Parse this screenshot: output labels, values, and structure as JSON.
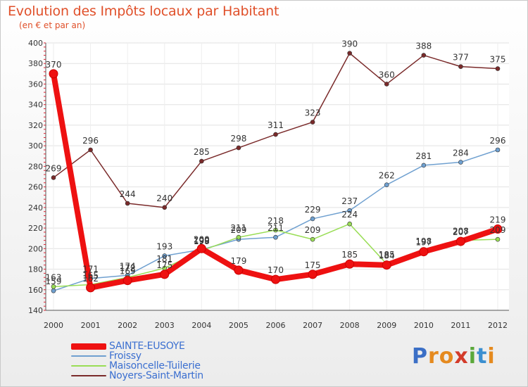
{
  "header": {
    "title": "Evolution des Impôts locaux par Habitant",
    "subtitle": "(en € et par an)"
  },
  "logo": {
    "letters": [
      "P",
      "r",
      "o",
      "x",
      "i",
      "t",
      "i"
    ],
    "icon": "proxiti-logo"
  },
  "chart_data": {
    "type": "line",
    "title": "Evolution des Impôts locaux par Habitant",
    "subtitle": "(en € et par an)",
    "xlabel": "",
    "ylabel": "",
    "x": [
      "2000",
      "2001",
      "2002",
      "2003",
      "2004",
      "2005",
      "2006",
      "2007",
      "2008",
      "2009",
      "2010",
      "2011",
      "2012"
    ],
    "ylim": [
      140,
      400
    ],
    "yticks": [
      "140",
      "160",
      "180",
      "200",
      "220",
      "240",
      "260",
      "280",
      "300",
      "320",
      "340",
      "360",
      "380",
      "400"
    ],
    "grid": true,
    "legend": "bottom-left",
    "series": [
      {
        "name": "SAINTE-EUSOYE",
        "color": "#ee1111",
        "values": [
          370,
          162,
          169,
          175,
          200,
          179,
          170,
          175,
          185,
          184,
          197,
          207,
          219
        ],
        "labels": [
          "370",
          "162",
          "169",
          "175",
          "200",
          "179",
          "170",
          "175",
          "185",
          "184",
          "197",
          "207",
          "219"
        ]
      },
      {
        "name": "Froissy",
        "color": "#6fa0d0",
        "values": [
          159,
          171,
          174,
          193,
          199,
          209,
          211,
          229,
          237,
          262,
          281,
          284,
          296
        ],
        "labels": [
          "159",
          "171",
          "174",
          "193",
          "199",
          "209",
          "211",
          "229",
          "237",
          "262",
          "281",
          "284",
          "296"
        ]
      },
      {
        "name": "Maisoncelle-Tuilerie",
        "color": "#99dd55",
        "values": [
          163,
          165,
          172,
          181,
          198,
          211,
          218,
          209,
          224,
          185,
          198,
          208,
          209
        ],
        "labels": [
          "163",
          "165",
          "172",
          "181",
          "198",
          "211",
          "218",
          "209",
          "224",
          "185",
          "198",
          "208",
          "209"
        ]
      },
      {
        "name": "Noyers-Saint-Martin",
        "color": "#7a2a2a",
        "values": [
          269,
          296,
          244,
          240,
          285,
          298,
          311,
          323,
          390,
          360,
          388,
          377,
          375
        ],
        "labels": [
          "269",
          "296",
          "244",
          "240",
          "285",
          "298",
          "311",
          "323",
          "390",
          "360",
          "388",
          "377",
          "375"
        ]
      }
    ]
  }
}
